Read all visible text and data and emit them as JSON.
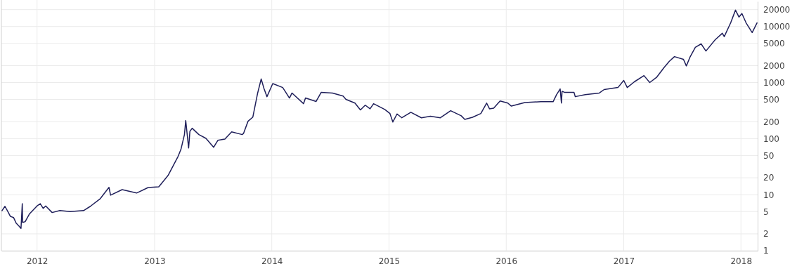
{
  "chart_data": {
    "type": "line",
    "log": "y",
    "grid": true,
    "marker": "none",
    "line_style": "solid",
    "xlim": [
      "2011-09-12",
      "2018-02-22"
    ],
    "xticks": [
      {
        "value": "2012-01-01",
        "label": "2012"
      },
      {
        "value": "2013-01-01",
        "label": "2013"
      },
      {
        "value": "2014-01-01",
        "label": "2014"
      },
      {
        "value": "2015-01-01",
        "label": "2015"
      },
      {
        "value": "2016-01-01",
        "label": "2016"
      },
      {
        "value": "2017-01-01",
        "label": "2017"
      },
      {
        "value": "2018-01-01",
        "label": "2018"
      }
    ],
    "ylim": [
      1,
      28000
    ],
    "yticks": [
      1,
      2,
      5,
      10,
      20,
      50,
      100,
      200,
      500,
      1000,
      2000,
      5000,
      10000,
      20000
    ],
    "series": [
      {
        "color": "#1f1f5a",
        "x": [
          "2011-09-14",
          "2011-09-23",
          "2011-10-02",
          "2011-10-10",
          "2011-10-20",
          "2011-10-28",
          "2011-11-06",
          "2011-11-12",
          "2011-11-16",
          "2011-11-17",
          "2011-11-25",
          "2011-12-08",
          "2012-01-01",
          "2012-01-11",
          "2012-01-20",
          "2012-01-28",
          "2012-02-17",
          "2012-03-12",
          "2012-04-13",
          "2012-05-25",
          "2012-06-15",
          "2012-07-16",
          "2012-08-12",
          "2012-08-17",
          "2012-09-22",
          "2012-11-06",
          "2012-12-12",
          "2013-01-14",
          "2013-02-12",
          "2013-03-15",
          "2013-03-24",
          "2013-04-04",
          "2013-04-08",
          "2013-04-17",
          "2013-04-21",
          "2013-04-28",
          "2013-05-19",
          "2013-06-10",
          "2013-07-04",
          "2013-07-17",
          "2013-08-08",
          "2013-08-29",
          "2013-10-01",
          "2013-10-05",
          "2013-10-19",
          "2013-11-03",
          "2013-11-18",
          "2013-11-29",
          "2013-12-08",
          "2013-12-17",
          "2014-01-04",
          "2014-02-04",
          "2014-02-25",
          "2014-03-05",
          "2014-04-10",
          "2014-04-16",
          "2014-05-19",
          "2014-06-04",
          "2014-07-09",
          "2014-08-11",
          "2014-08-20",
          "2014-09-17",
          "2014-10-04",
          "2014-10-19",
          "2014-11-03",
          "2014-11-14",
          "2014-12-19",
          "2015-01-04",
          "2015-01-13",
          "2015-01-26",
          "2015-02-10",
          "2015-03-10",
          "2015-04-12",
          "2015-05-10",
          "2015-06-10",
          "2015-07-12",
          "2015-08-14",
          "2015-08-25",
          "2015-09-18",
          "2015-10-14",
          "2015-11-01",
          "2015-11-10",
          "2015-11-23",
          "2015-12-13",
          "2016-01-06",
          "2016-01-17",
          "2016-02-28",
          "2016-04-18",
          "2016-05-26",
          "2016-06-06",
          "2016-06-17",
          "2016-06-21",
          "2016-06-23",
          "2016-06-30",
          "2016-07-30",
          "2016-08-03",
          "2016-09-03",
          "2016-10-17",
          "2016-11-01",
          "2016-12-14",
          "2017-01-01",
          "2017-01-12",
          "2017-02-03",
          "2017-03-05",
          "2017-03-23",
          "2017-04-14",
          "2017-05-06",
          "2017-05-23",
          "2017-06-08",
          "2017-07-06",
          "2017-07-15",
          "2017-07-26",
          "2017-08-12",
          "2017-08-30",
          "2017-09-14",
          "2017-10-13",
          "2017-11-04",
          "2017-11-10",
          "2017-11-30",
          "2017-12-15",
          "2017-12-26",
          "2018-01-04",
          "2018-01-17",
          "2018-02-05",
          "2018-02-20"
        ],
        "values": [
          5.2,
          6.2,
          5.0,
          4.1,
          3.9,
          3.1,
          2.75,
          2.5,
          6.9,
          3.2,
          3.3,
          4.5,
          6.3,
          6.9,
          5.7,
          6.3,
          4.8,
          5.2,
          5.0,
          5.2,
          6.2,
          8.5,
          13.5,
          9.8,
          12.3,
          10.7,
          13.4,
          13.8,
          22,
          48,
          64,
          118,
          210,
          68,
          135,
          153,
          118,
          101,
          70,
          93,
          98,
          132,
          118,
          124,
          204,
          242,
          650,
          1160,
          770,
          560,
          960,
          815,
          530,
          650,
          420,
          530,
          460,
          670,
          650,
          575,
          500,
          430,
          325,
          395,
          340,
          420,
          330,
          280,
          198,
          275,
          235,
          295,
          235,
          250,
          235,
          315,
          255,
          220,
          240,
          280,
          430,
          340,
          350,
          470,
          430,
          380,
          440,
          455,
          455,
          610,
          770,
          430,
          700,
          670,
          670,
          560,
          610,
          650,
          750,
          815,
          1090,
          815,
          1030,
          1330,
          1000,
          1250,
          1830,
          2390,
          2900,
          2590,
          1980,
          2810,
          4240,
          4890,
          3650,
          5810,
          7570,
          6590,
          11600,
          19600,
          14700,
          17000,
          11600,
          7800,
          11600
        ]
      }
    ]
  }
}
